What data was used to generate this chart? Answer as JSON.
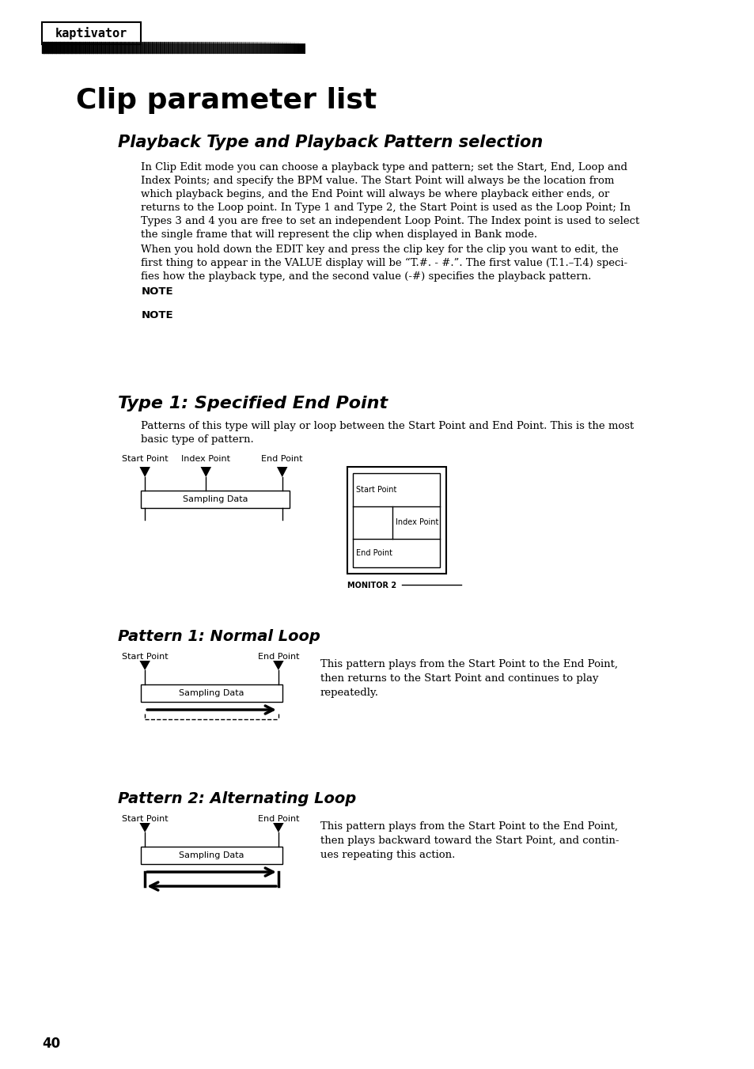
{
  "page_title": "Clip parameter list",
  "section1_title": "Playback Type and Playback Pattern selection",
  "section1_body1": "In Clip Edit mode you can choose a playback type and pattern; set the Start, End, Loop and\nIndex Points; and specify the BPM value. The Start Point will always be the location from\nwhich playback begins, and the End Point will always be where playback either ends, or\nreturns to the Loop point. In Type 1 and Type 2, the Start Point is used as the Loop Point; In\nTypes 3 and 4 you are free to set an independent Loop Point. The Index point is used to select\nthe single frame that will represent the clip when displayed in Bank mode.",
  "section1_body2": "When you hold down the EDIT key and press the clip key for the clip you want to edit, the\nfirst thing to appear in the VALUE display will be “T.#. - #.”. The first value (T.1.–T.4) speci-\nfies how the playback type, and the second value (-#) specifies the playback pattern.",
  "note1_label": "NOTE",
  "note2_label": "NOTE",
  "section2_title": "Type 1: Specified End Point",
  "section2_body": "Patterns of this type will play or loop between the Start Point and End Point. This is the most\nbasic type of pattern.",
  "diag1_labels": [
    "Start Point",
    "Index Point",
    "End Point"
  ],
  "diag1_bar_label": "Sampling Data",
  "diag2_monitor_label": "MONITOR 2",
  "diag2_labels": [
    "Start Point",
    "Index Point",
    "End Point"
  ],
  "pattern1_title": "Pattern 1: Normal Loop",
  "pattern1_body": "This pattern plays from the Start Point to the End Point,\nthen returns to the Start Point and continues to play\nrepeatedly.",
  "pattern1_labels": [
    "Start Point",
    "End Point"
  ],
  "pattern1_bar_label": "Sampling Data",
  "pattern2_title": "Pattern 2: Alternating Loop",
  "pattern2_body": "This pattern plays from the Start Point to the End Point,\nthen plays backward toward the Start Point, and contin-\nues repeating this action.",
  "pattern2_labels": [
    "Start Point",
    "End Point"
  ],
  "pattern2_bar_label": "Sampling Data",
  "page_number": "40",
  "logo_text": "kaptivator",
  "bg_color": "#ffffff",
  "text_color": "#000000"
}
